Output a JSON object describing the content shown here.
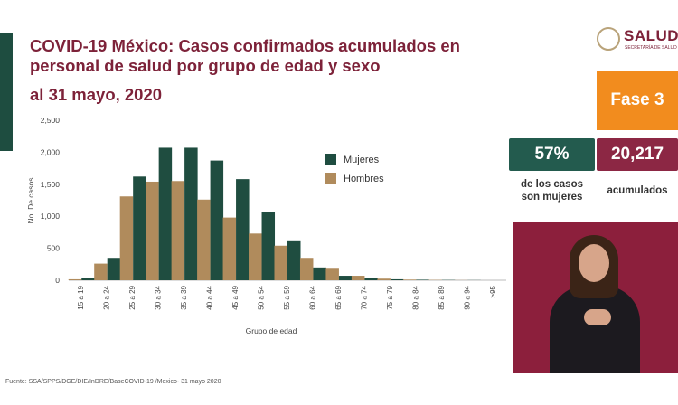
{
  "title": {
    "line1": "COVID-19 México: Casos confirmados acumulados en",
    "line2": "personal de salud por grupo de edad y sexo",
    "date": "al 31 mayo, 2020"
  },
  "logo": {
    "text": "SALUD",
    "subtext": "SECRETARÍA DE SALUD"
  },
  "phase": {
    "label": "Fase 3"
  },
  "stats": {
    "women_pct": "57%",
    "women_caption_line1": "de los casos",
    "women_caption_line2": "son mujeres",
    "total": "20,217",
    "total_caption": "acumulados"
  },
  "source": "Fuente: SSA/SPPS/DGE/DIE/InDRE/BaseCOVID-19 /Mexico- 31 mayo 2020",
  "colors": {
    "mujeres": "#1f4d40",
    "hombres": "#b08b5c",
    "title": "#7d2239"
  },
  "chart_data": {
    "type": "bar",
    "xlabel": "Grupo de edad",
    "ylabel": "No. De casos",
    "ylim": [
      0,
      2500
    ],
    "yticks": [
      "0",
      "500",
      "1,000",
      "1,500",
      "2,000",
      "2,500"
    ],
    "grid": false,
    "legend_position": "right",
    "categories": [
      "15 a 19",
      "20 a 24",
      "25 a 29",
      "30 a 34",
      "35 a 39",
      "40 a 44",
      "45 a 49",
      "50 a 54",
      "55 a 59",
      "60 a 64",
      "65 a 69",
      "70 a 74",
      "75 a 79",
      "80 a 84",
      "85 a 89",
      "90 a 94",
      ">95"
    ],
    "series": [
      {
        "name": "Hombres",
        "values": [
          15,
          260,
          1310,
          1540,
          1550,
          1260,
          980,
          730,
          540,
          350,
          180,
          70,
          25,
          10,
          5,
          2,
          0
        ]
      },
      {
        "name": "Mujeres",
        "values": [
          30,
          350,
          1620,
          2070,
          2070,
          1870,
          1580,
          1060,
          610,
          200,
          70,
          30,
          15,
          8,
          4,
          2,
          0
        ]
      }
    ]
  }
}
